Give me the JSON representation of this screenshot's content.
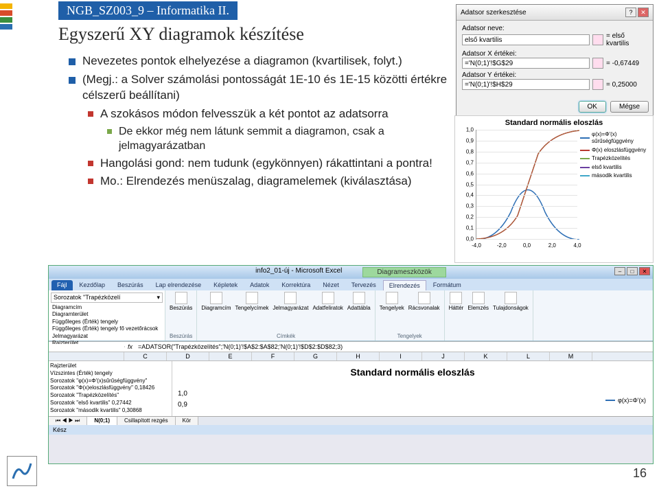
{
  "deco_colors": [
    "#f4b400",
    "#d94c2a",
    "#3b8f3e",
    "#2b6fb0"
  ],
  "header": "NGB_SZ003_9 – Informatika II.",
  "title": "Egyszerű XY diagramok készítése",
  "bullets": {
    "b1": "Nevezetes pontok elhelyezése a diagramon (kvartilisek, folyt.)",
    "b2": "(Megj.: a Solver számolási pontosságát 1E-10 és 1E-15 közötti értékre célszerű beállítani)",
    "b3": "A szokásos módon felvesszük a két pontot az adatsorra",
    "b3a": "De ekkor még nem látunk semmit a diagramon, csak a jelmagyarázatban",
    "b4": "Hangolási gond: nem tudunk (egykönnyen) rákattintani a pontra!",
    "b5": "Mo.: Elrendezés menüszalag, diagramelemek (kiválasztása)"
  },
  "page_num": "16",
  "dialog": {
    "title": "Adatsor szerkesztése",
    "name_label": "Adatsor neve:",
    "name_value": "első kvartilis",
    "name_eq": "= első kvartilis",
    "x_label": "Adatsor X értékei:",
    "x_value": "='N(0;1)'!$G$29",
    "x_eq": "= -0,67449",
    "y_label": "Adatsor Y értékei:",
    "y_value": "='N(0;1)'!$H$29",
    "y_eq": "= 0,25000",
    "ok": "OK",
    "cancel": "Mégse"
  },
  "chart": {
    "title": "Standard normális eloszlás",
    "yticks": [
      "1,0",
      "0,9",
      "0,8",
      "0,7",
      "0,6",
      "0,5",
      "0,4",
      "0,3",
      "0,2",
      "0,1",
      "0,0"
    ],
    "xticks": [
      "-4,0",
      "-2,0",
      "0,0",
      "2,0",
      "4,0"
    ],
    "legend": [
      {
        "label": "φ(x)=Φ'(x) sűrűségfüggvény",
        "color": "#2e6fb5"
      },
      {
        "label": "Φ(x) eloszlásfüggvény",
        "color": "#b83a2e"
      },
      {
        "label": "Trapézközelítés",
        "color": "#7aa84a"
      },
      {
        "label": "első kvartilis",
        "color": "#6b3fa0"
      },
      {
        "label": "második kvartilis",
        "color": "#3fa7c9"
      }
    ]
  },
  "excel": {
    "wintitle": "info2_01-új - Microsoft Excel",
    "tooltab": "Diagrameszközök",
    "tabs": [
      "Kezdőlap",
      "Beszúrás",
      "Lap elrendezése",
      "Képletek",
      "Adatok",
      "Korrektúra",
      "Nézet",
      "Tervezés",
      "Elrendezés",
      "Formátum"
    ],
    "file": "Fájl",
    "active_tab_idx": 8,
    "selector": "Sorozatok \"Trapézközelí",
    "list": [
      "Diagramcím",
      "Diagramterület",
      "Függőleges (Érték) tengely",
      "Függőleges (Érték) tengely fő vezetőrácsok",
      "Jelmagyarázat",
      "Rajzterület",
      "Vízszintes (Érték) tengely",
      "Sorozatok \"φ(x)=Φ'(x)sűrűségfüggvény\"",
      "Sorozatok \"Φ(x)eloszlásfüggvény\"",
      "Sorozatok \"Trapézközelítés\"",
      "Sorozatok \"első kvartilis\"",
      "Sorozatok \"második kvartilis\""
    ],
    "groups": {
      "g1_label": "Beszúrás",
      "g1_btns": [
        "Beszúrás"
      ],
      "g2_label": "Címkék",
      "g2_btns": [
        "Diagramcím",
        "Tengelycímek",
        "Jelmagyarázat",
        "Adatfeliratok",
        "Adattábla"
      ],
      "g3_label": "Tengelyek",
      "g3_btns": [
        "Tengelyek",
        "Rácsvonalak"
      ],
      "g4_label": "",
      "g4_btns": [
        "Háttér",
        "Elemzés",
        "Tulajdonságok"
      ]
    },
    "namebox": "",
    "formula": "=ADATSOR(\"Trapézközelítés\";'N(0;1)'!$A$2:$A$82;'N(0;1)'!$D$2:$D$82;3)",
    "cols": [
      "C",
      "D",
      "E",
      "F",
      "G",
      "H",
      "I",
      "J",
      "K",
      "L",
      "M"
    ],
    "left_vals": [
      "0,18426",
      "",
      "0,27442",
      "0,30868"
    ],
    "chart_title": "Standard normális eloszlás",
    "y0": "1,0",
    "y1": "0,9",
    "legend_item": "φ(x)=Φ'(x)",
    "legend_color": "#2e6fb5",
    "sheets_nav": [
      "N(0;1)",
      "Csillapított rezgés",
      "Kör"
    ],
    "status": "Kész"
  }
}
